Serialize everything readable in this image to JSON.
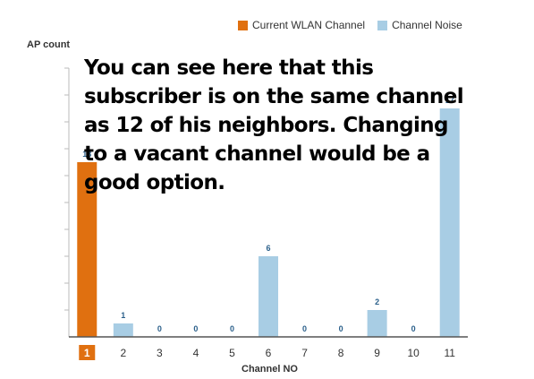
{
  "legend": {
    "current_label": "Current WLAN Channel",
    "noise_label": "Channel Noise"
  },
  "annotation": "You can see here that this subscriber is on the same channel as 12 of his neighbors.  Changing to a vacant channel would be a good option.",
  "colors": {
    "current": "#e07010",
    "noise": "#a8cde4",
    "value_label": "#2a5f8a",
    "axis": "#555555"
  },
  "chart_data": {
    "type": "bar",
    "title": "",
    "xlabel": "Channel NO",
    "ylabel": "AP count",
    "categories": [
      "1",
      "2",
      "3",
      "4",
      "5",
      "6",
      "7",
      "8",
      "9",
      "10",
      "11"
    ],
    "series": [
      {
        "name": "Current WLAN Channel",
        "values": [
          13,
          null,
          null,
          null,
          null,
          null,
          null,
          null,
          null,
          null,
          null
        ]
      },
      {
        "name": "Channel Noise",
        "values": [
          null,
          1,
          0,
          0,
          0,
          6,
          0,
          0,
          2,
          0,
          17
        ]
      }
    ],
    "highlighted_category": "1",
    "ylim": [
      0,
      20
    ],
    "grid": false,
    "legend_position": "top-right"
  }
}
